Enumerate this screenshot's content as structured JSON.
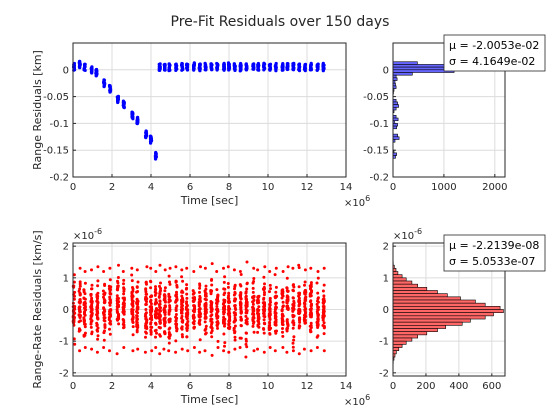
{
  "figure": {
    "title": "Pre-Fit Residuals over 150 days"
  },
  "chart_data": [
    {
      "type": "scatter",
      "panel": "top-left",
      "xlabel": "Time [sec]",
      "ylabel": "Range Residuals [km]",
      "xlim": [
        0,
        14
      ],
      "ylim": [
        -0.2,
        0.05
      ],
      "x_multiplier": "×10^6",
      "xticks": [
        "0",
        "2",
        "4",
        "6",
        "8",
        "10",
        "12",
        "14"
      ],
      "yticks": [
        "0",
        "-0.05",
        "-0.1",
        "-0.15",
        "-0.2"
      ],
      "grid": true,
      "color": "#0000ff",
      "series": [
        {
          "passes_x": [
            0.05,
            0.35,
            0.6,
            0.95,
            1.2,
            1.6,
            1.9,
            2.3,
            2.6,
            3.05,
            3.3,
            3.75,
            4.0,
            4.25,
            4.45,
            4.7,
            4.95,
            5.3,
            5.6,
            5.85,
            6.2,
            6.5,
            6.8,
            7.1,
            7.4,
            7.75,
            8.0,
            8.3,
            8.6,
            8.9,
            9.25,
            9.5,
            9.8,
            10.1,
            10.4,
            10.75,
            11.0,
            11.3,
            11.6,
            11.9,
            12.2,
            12.55,
            12.85
          ],
          "passes_center_y": [
            0.005,
            0.01,
            0.005,
            0.0,
            -0.005,
            -0.025,
            -0.035,
            -0.055,
            -0.065,
            -0.085,
            -0.095,
            -0.12,
            -0.13,
            -0.16,
            0.005,
            0.005,
            0.005,
            0.005,
            0.006,
            0.005,
            0.006,
            0.005,
            0.005,
            0.006,
            0.005,
            0.006,
            0.006,
            0.005,
            0.005,
            0.005,
            0.006,
            0.005,
            0.006,
            0.005,
            0.005,
            0.005,
            0.006,
            0.006,
            0.005,
            0.005,
            0.005,
            0.005,
            0.005
          ],
          "passes_spread": 0.012
        }
      ]
    },
    {
      "type": "bar",
      "panel": "top-right",
      "orientation": "horizontal",
      "xlim": [
        0,
        2200
      ],
      "ylim": [
        -0.2,
        0.05
      ],
      "xticks": [
        "0",
        "1000",
        "2000"
      ],
      "yticks": [
        "0",
        "-0.05",
        "-0.1",
        "-0.15",
        "-0.2"
      ],
      "grid": true,
      "color": "#6666ff",
      "bins_y": [
        0.0125,
        0.0075,
        0.0025,
        -0.0025,
        -0.0075,
        -0.0125,
        -0.0175,
        -0.0225,
        -0.0275,
        -0.0325,
        -0.0375,
        -0.0425,
        -0.0475,
        -0.0525,
        -0.0575,
        -0.0625,
        -0.0675,
        -0.0725,
        -0.0775,
        -0.0825,
        -0.0875,
        -0.0925,
        -0.0975,
        -0.1025,
        -0.1075,
        -0.1125,
        -0.1175,
        -0.1225,
        -0.1275,
        -0.1325,
        -0.1375,
        -0.1425,
        -0.1475,
        -0.1525,
        -0.1575,
        -0.1625
      ],
      "values": [
        480,
        1650,
        2150,
        1200,
        380,
        60,
        80,
        40,
        50,
        60,
        20,
        10,
        0,
        0,
        60,
        90,
        110,
        60,
        20,
        0,
        60,
        100,
        30,
        90,
        70,
        0,
        0,
        90,
        120,
        40,
        0,
        0,
        0,
        20,
        70,
        50
      ],
      "stats": {
        "mu": "μ = -2.0053e-02",
        "sigma": "σ = 4.1649e-02"
      }
    },
    {
      "type": "scatter",
      "panel": "bottom-left",
      "xlabel": "Time [sec]",
      "ylabel": "Range-Rate Residuals [km/s]",
      "xlim": [
        0,
        14
      ],
      "ylim": [
        -2.1,
        2.1
      ],
      "x_multiplier": "×10^6",
      "y_multiplier": "×10^-6",
      "xticks": [
        "0",
        "2",
        "4",
        "6",
        "8",
        "10",
        "12",
        "14"
      ],
      "yticks": [
        "2",
        "1",
        "0",
        "-1",
        "-2"
      ],
      "grid": true,
      "color": "#ff0000",
      "series": [
        {
          "passes_x": [
            0.05,
            0.35,
            0.6,
            0.95,
            1.25,
            1.6,
            1.9,
            2.3,
            2.6,
            3.05,
            3.3,
            3.75,
            4.0,
            4.25,
            4.45,
            4.7,
            4.95,
            5.3,
            5.6,
            5.85,
            6.2,
            6.5,
            6.8,
            7.1,
            7.4,
            7.75,
            8.0,
            8.3,
            8.6,
            8.9,
            9.25,
            9.5,
            9.8,
            10.1,
            10.4,
            10.75,
            11.0,
            11.3,
            11.6,
            11.9,
            12.2,
            12.55,
            12.85
          ],
          "passes_half_range": [
            1.1,
            1.3,
            1.2,
            1.25,
            1.35,
            1.2,
            1.3,
            1.4,
            1.2,
            1.3,
            1.25,
            1.35,
            1.3,
            1.2,
            1.4,
            1.25,
            1.3,
            1.35,
            1.25,
            1.3,
            1.2,
            1.35,
            1.3,
            1.45,
            1.2,
            1.3,
            1.35,
            1.25,
            1.2,
            1.5,
            1.3,
            1.25,
            1.35,
            1.2,
            1.3,
            1.2,
            1.35,
            1.3,
            1.4,
            1.25,
            1.3,
            1.2,
            1.3
          ]
        }
      ]
    },
    {
      "type": "bar",
      "panel": "bottom-right",
      "orientation": "horizontal",
      "xlim": [
        0,
        680
      ],
      "ylim": [
        -2.1,
        2.1
      ],
      "y_multiplier": "×10^-6",
      "xticks": [
        "0",
        "200",
        "400",
        "600"
      ],
      "yticks": [
        "2",
        "1",
        "0",
        "-1",
        "-2"
      ],
      "grid": true,
      "color": "#ff6666",
      "bins_y": [
        1.45,
        1.35,
        1.25,
        1.15,
        1.05,
        0.95,
        0.85,
        0.75,
        0.65,
        0.55,
        0.45,
        0.35,
        0.25,
        0.15,
        0.05,
        -0.05,
        -0.15,
        -0.25,
        -0.35,
        -0.45,
        -0.55,
        -0.65,
        -0.75,
        -0.85,
        -0.95,
        -1.05,
        -1.15,
        -1.25,
        -1.35,
        -1.45,
        -1.55,
        -1.65
      ],
      "values": [
        2,
        8,
        18,
        30,
        55,
        80,
        115,
        150,
        205,
        270,
        330,
        410,
        500,
        560,
        650,
        670,
        610,
        560,
        470,
        420,
        320,
        270,
        205,
        150,
        115,
        80,
        55,
        35,
        20,
        12,
        6,
        2
      ],
      "stats": {
        "mu": "μ = -2.2139e-08",
        "sigma": "σ = 5.0533e-07"
      }
    }
  ]
}
